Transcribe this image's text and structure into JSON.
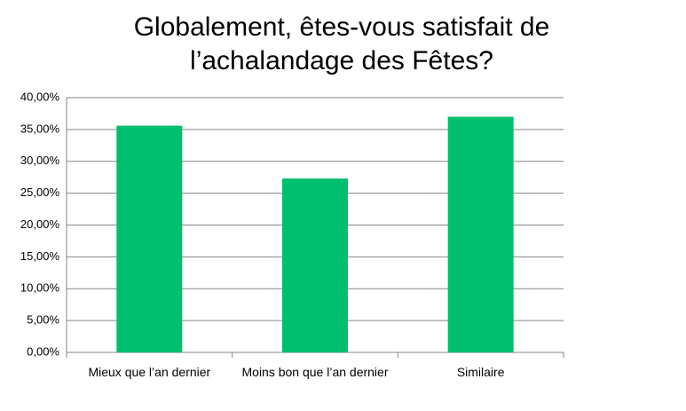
{
  "chart_data": {
    "type": "bar",
    "title": "Globalement, êtes-vous satisfait de l’achalandage des Fêtes?",
    "categories": [
      "Mieux que l’an dernier",
      "Moins bon que l’an dernier",
      "Similaire"
    ],
    "values": [
      35.6,
      27.3,
      37.0
    ],
    "color": "#00bf6f",
    "ylim": [
      0,
      40
    ],
    "yticks": [
      {
        "value": 0,
        "label": "0,00%"
      },
      {
        "value": 5,
        "label": "5,00%"
      },
      {
        "value": 10,
        "label": "10,00%"
      },
      {
        "value": 15,
        "label": "15,00%"
      },
      {
        "value": 20,
        "label": "20,00%"
      },
      {
        "value": 25,
        "label": "25,00%"
      },
      {
        "value": 30,
        "label": "30,00%"
      },
      {
        "value": 35,
        "label": "35,00%"
      },
      {
        "value": 40,
        "label": "40,00%"
      }
    ],
    "grid": true
  }
}
